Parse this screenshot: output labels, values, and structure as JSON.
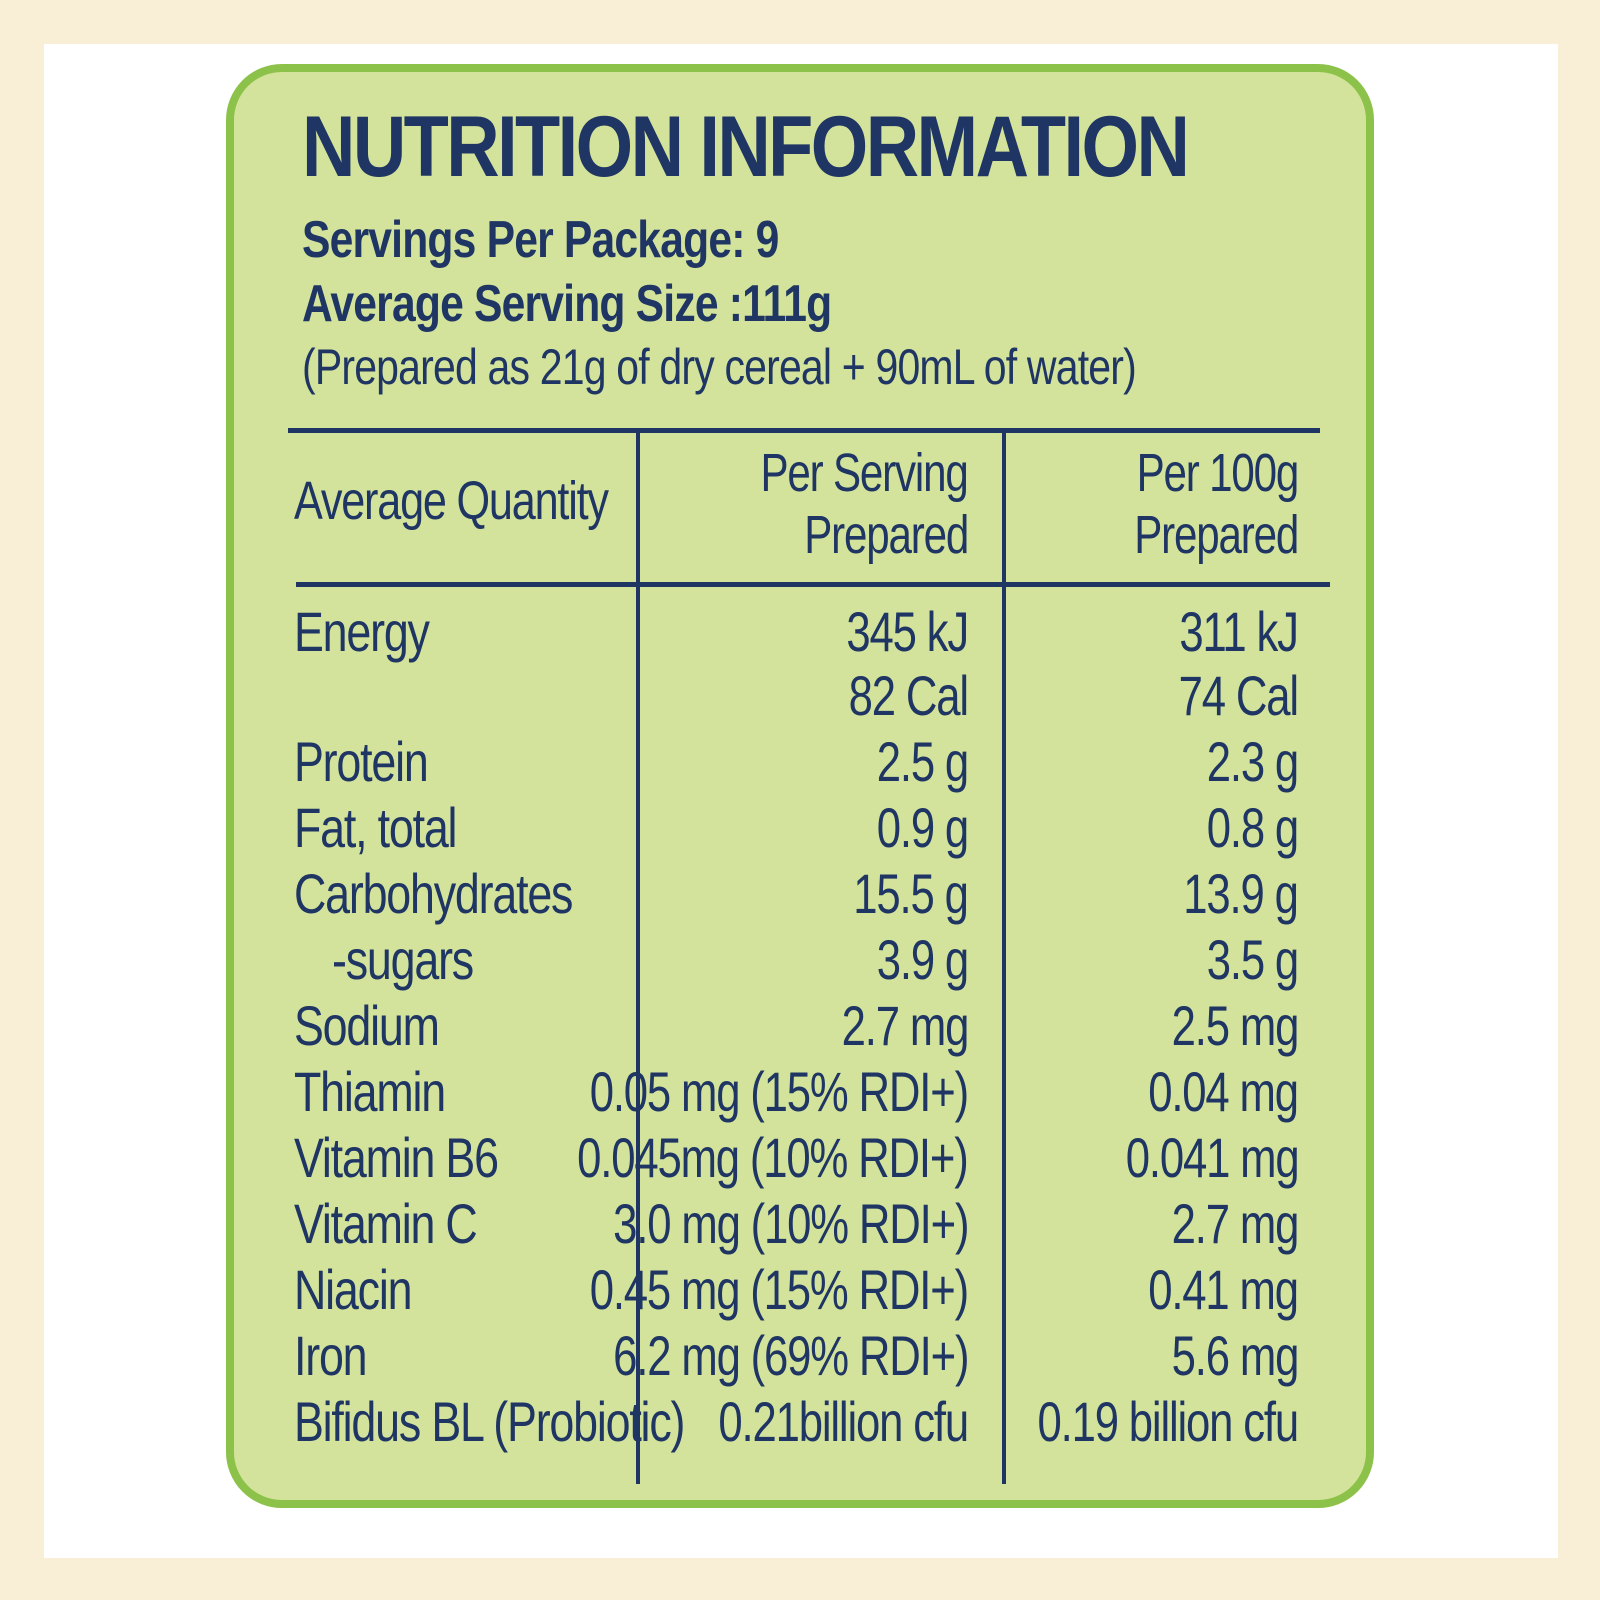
{
  "title": "NUTRITION INFORMATION",
  "servings_per_package": "Servings Per Package: 9",
  "average_serving_size": "Average Serving Size :111g",
  "prepared_note": "(Prepared as 21g of dry cereal + 90mL of water)",
  "table": {
    "headers": {
      "col1": "Average Quantity",
      "col2_line1": "Per Serving",
      "col2_line2": "Prepared",
      "col3_line1": "Per 100g",
      "col3_line2": "Prepared"
    },
    "rows": [
      {
        "label": "Energy",
        "per_serving": "345 kJ",
        "per_100g": "311 kJ"
      },
      {
        "label": "",
        "per_serving": "82 Cal",
        "per_100g": "74 Cal"
      },
      {
        "label": "Protein",
        "per_serving": "2.5 g",
        "per_100g": "2.3 g"
      },
      {
        "label": "Fat, total",
        "per_serving": "0.9 g",
        "per_100g": "0.8 g"
      },
      {
        "label": "Carbohydrates",
        "per_serving": "15.5 g",
        "per_100g": "13.9 g"
      },
      {
        "label": "-sugars",
        "per_serving": "3.9 g",
        "per_100g": "3.5 g"
      },
      {
        "label": "Sodium",
        "per_serving": "2.7 mg",
        "per_100g": "2.5 mg"
      },
      {
        "label": "Thiamin",
        "per_serving": "0.05 mg (15% RDI+)",
        "per_100g": "0.04 mg"
      },
      {
        "label": "Vitamin B6",
        "per_serving": "0.045mg (10% RDI+)",
        "per_100g": "0.041 mg"
      },
      {
        "label": "Vitamin C",
        "per_serving": "3.0 mg (10% RDI+)",
        "per_100g": "2.7 mg"
      },
      {
        "label": "Niacin",
        "per_serving": "0.45 mg (15% RDI+)",
        "per_100g": "0.41 mg"
      },
      {
        "label": "Iron",
        "per_serving": "6.2 mg (69% RDI+)",
        "per_100g": "5.6 mg"
      },
      {
        "label": "Bifidus BL (Probiotic)",
        "per_serving": "0.21billion cfu",
        "per_100g": "0.19 billion cfu"
      }
    ]
  },
  "colors": {
    "outer_background": "#f9efd6",
    "frame": "#ffffff",
    "panel_fill": "#d3e39b",
    "panel_border": "#8dc24a",
    "text": "#1f3563"
  }
}
